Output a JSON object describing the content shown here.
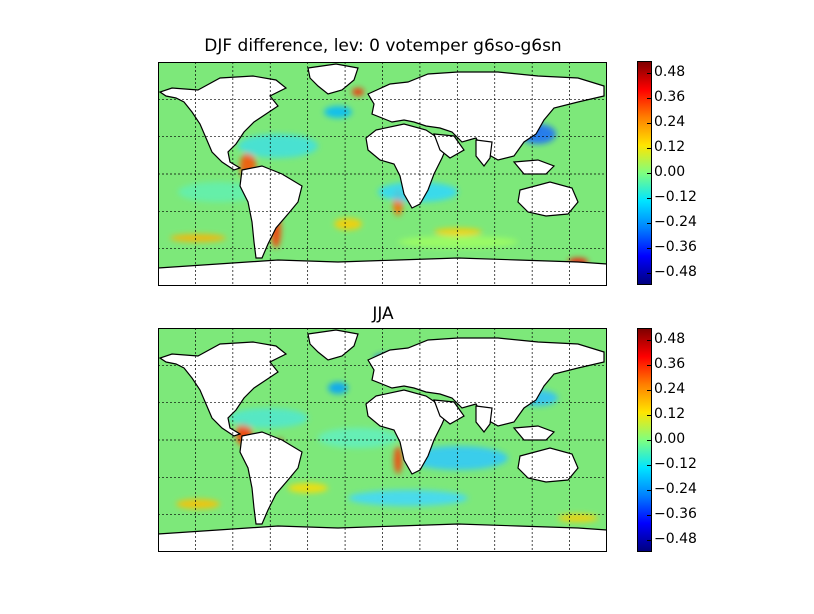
{
  "figure": {
    "panels": [
      {
        "id": "djf",
        "title": "DJF difference, lev: 0 votemper g6so-g6sn"
      },
      {
        "id": "jja",
        "title": "JJA"
      }
    ],
    "colorbar": {
      "ticks": [
        "0.48",
        "0.36",
        "0.24",
        "0.12",
        "0.00",
        "−0.12",
        "−0.24",
        "−0.36",
        "−0.48"
      ],
      "tick_values": [
        0.48,
        0.36,
        0.24,
        0.12,
        0.0,
        -0.12,
        -0.24,
        -0.36,
        -0.48
      ],
      "range": [
        -0.54,
        0.54
      ],
      "colormap": "jet",
      "colors": [
        "#00007f",
        "#0000ff",
        "#007fff",
        "#00e5ff",
        "#7fff7f",
        "#ffe500",
        "#ff7f00",
        "#ff0000",
        "#7f0000"
      ]
    },
    "map": {
      "projection": "cylindrical",
      "land_color": "#ffffff",
      "ocean_base_color": "#7de87a",
      "grid": "dashed",
      "grid_color": "#000000"
    }
  }
}
